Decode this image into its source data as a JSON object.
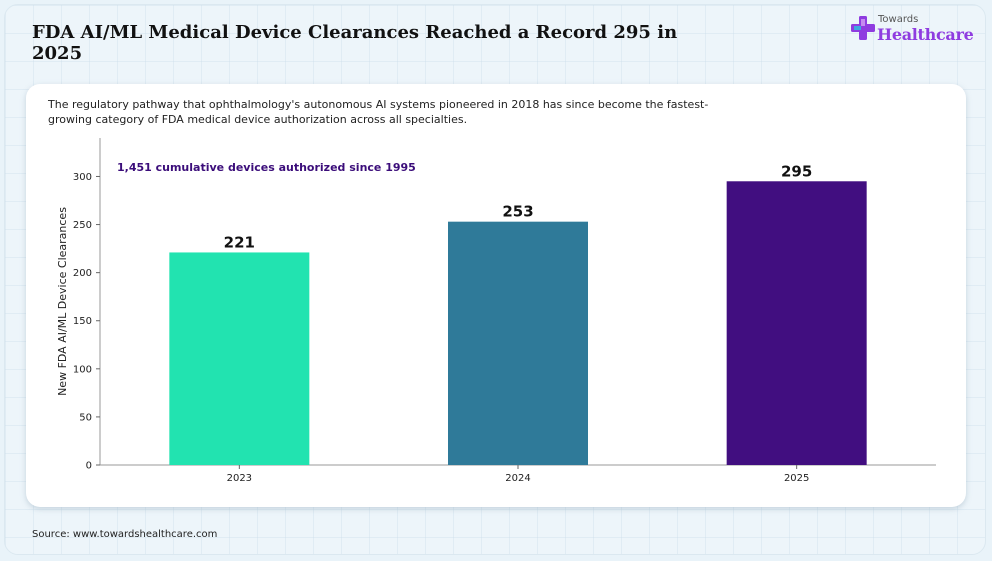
{
  "header": {
    "title": "FDA AI/ML Medical Device Clearances Reached a Record 295 in 2025",
    "logo_small": "Towards",
    "logo_big": "Healthcare"
  },
  "subtitle": "The regulatory pathway that ophthalmology's autonomous AI systems pioneered in 2018 has since become the fastest-growing category of FDA medical device authorization across all specialties.",
  "source": "Source: www.towardshealthcare.com",
  "colors": {
    "bar_2023": "#22e3b0",
    "bar_2024": "#2f7a99",
    "bar_2025": "#410e80",
    "annotation": "#3b0d7a",
    "logo_accent": "#8f3ce0"
  },
  "chart_data": {
    "type": "bar",
    "categories": [
      "2023",
      "2024",
      "2025"
    ],
    "values": [
      221,
      253,
      295
    ],
    "title": "FDA AI/ML Medical Device Clearances Reached a Record 295 in 2025",
    "xlabel": "",
    "ylabel": "New FDA AI/ML Device Clearances",
    "ylim": [
      0,
      340
    ],
    "yticks": [
      0,
      50,
      100,
      150,
      200,
      250,
      300
    ],
    "data_labels": [
      "221",
      "253",
      "295"
    ],
    "annotation": "1,451 cumulative devices authorized since 1995",
    "grid": false,
    "legend": "none"
  }
}
